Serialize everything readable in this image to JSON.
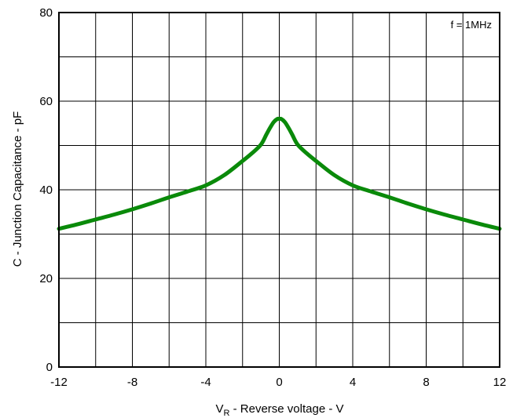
{
  "chart_data": {
    "type": "line",
    "title": "",
    "xlabel": {
      "main": "V",
      "sub": "R",
      "rest": " - Reverse voltage - V"
    },
    "ylabel": "C - Junction Capacitance - pF",
    "xlim": [
      -12,
      12
    ],
    "ylim": [
      0,
      80
    ],
    "x_ticks": [
      -12,
      -8,
      -4,
      0,
      4,
      8,
      12
    ],
    "x_tick_labels": [
      "-12",
      "-8",
      "-4",
      "0",
      "4",
      "8",
      "12"
    ],
    "y_ticks": [
      0,
      20,
      40,
      60,
      80
    ],
    "y_tick_labels": [
      "0",
      "20",
      "40",
      "60",
      "80"
    ],
    "x_grid_step": 2,
    "y_grid_step": 10,
    "grid": true,
    "annotation": "f = 1MHz",
    "series": [
      {
        "color": "#0a8a0a",
        "x": [
          -12,
          -11,
          -10,
          -9,
          -8,
          -7,
          -6,
          -5,
          -4,
          -3,
          -2,
          -1.5,
          -1,
          -0.7,
          -0.5,
          -0.3,
          -0.1,
          0,
          0.1,
          0.3,
          0.5,
          0.7,
          1,
          1.5,
          2,
          3,
          4,
          5,
          6,
          7,
          8,
          9,
          10,
          11,
          12
        ],
        "y": [
          31.2,
          32.2,
          33.3,
          34.4,
          35.6,
          36.9,
          38.3,
          39.6,
          41.0,
          43.3,
          46.5,
          48.2,
          50.2,
          52.5,
          54.0,
          55.3,
          56.0,
          56.0,
          56.0,
          55.3,
          54.0,
          52.5,
          50.2,
          48.2,
          46.5,
          43.3,
          41.0,
          39.6,
          38.3,
          36.9,
          35.6,
          34.4,
          33.3,
          32.2,
          31.2
        ]
      }
    ]
  }
}
